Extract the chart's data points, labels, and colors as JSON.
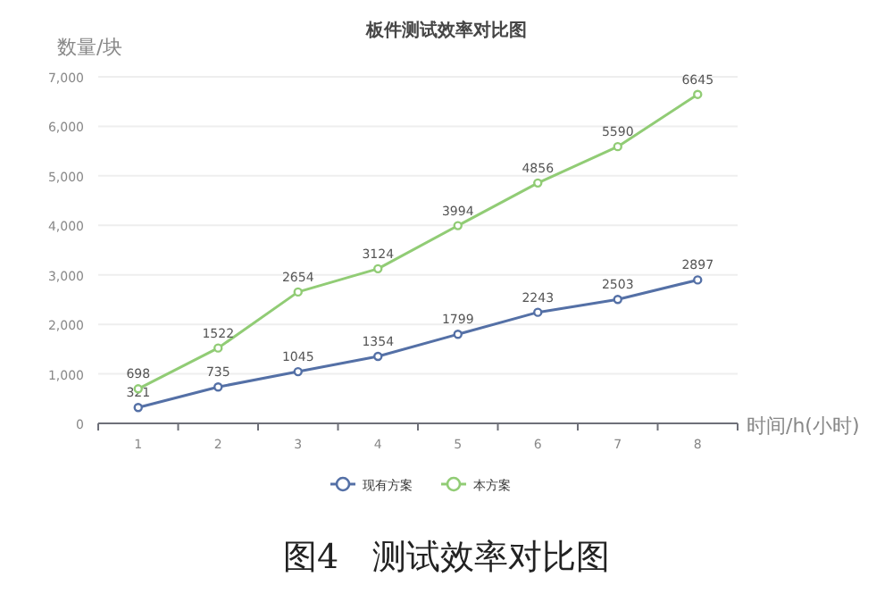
{
  "chart_data": {
    "type": "line",
    "title": "板件测试效率对比图",
    "xlabel": "时间/h(小时)",
    "ylabel": "数量/块",
    "categories": [
      "1",
      "2",
      "3",
      "4",
      "5",
      "6",
      "7",
      "8"
    ],
    "series": [
      {
        "name": "现有方案",
        "color": "#5470a6",
        "values": [
          321,
          735,
          1045,
          1354,
          1799,
          2243,
          2503,
          2897
        ]
      },
      {
        "name": "本方案",
        "color": "#91cc75",
        "values": [
          698,
          1522,
          2654,
          3124,
          3994,
          4856,
          5590,
          6645
        ]
      }
    ],
    "ylim": [
      0,
      7000
    ],
    "yticks": [
      0,
      {
        "value": 1000,
        "label": "1,000"
      },
      {
        "value": 2000,
        "label": "2,000"
      },
      {
        "value": 3000,
        "label": "3,000"
      },
      {
        "value": 4000,
        "label": "4,000"
      },
      {
        "value": 5000,
        "label": "5,000"
      },
      {
        "value": 6000,
        "label": "6,000"
      },
      {
        "value": 7000,
        "label": "7,000"
      }
    ],
    "grid": "y",
    "legend": "bottom",
    "marker": "circle",
    "data_labels": true,
    "annotations": [
      "图4　测试效率对比图"
    ]
  }
}
